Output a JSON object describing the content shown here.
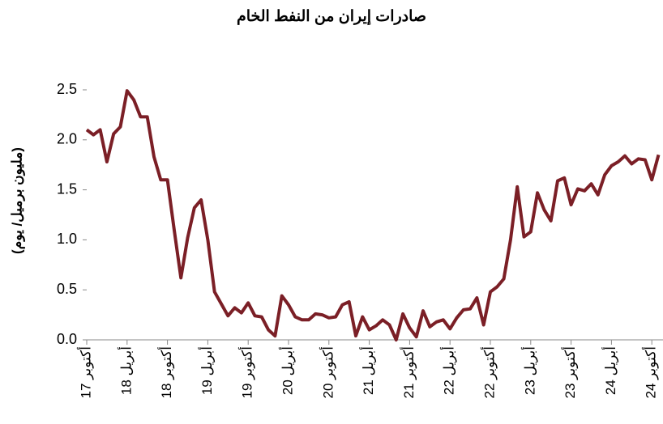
{
  "chart_data": {
    "type": "line",
    "title": "صادرات إيران من النفط الخام",
    "y_label": "(مليون برميل/ يوم)",
    "categories": [
      "أكتوبر 17",
      null,
      null,
      null,
      null,
      null,
      "أبريل 18",
      null,
      null,
      null,
      null,
      null,
      "أكتوبر 18",
      null,
      null,
      null,
      null,
      null,
      "أبريل 19",
      null,
      null,
      null,
      null,
      null,
      "أكتوبر 19",
      null,
      null,
      null,
      null,
      null,
      "أبريل 20",
      null,
      null,
      null,
      null,
      null,
      "أكتوبر 20",
      null,
      null,
      null,
      null,
      null,
      "أبريل 21",
      null,
      null,
      null,
      null,
      null,
      "أكتوبر 21",
      null,
      null,
      null,
      null,
      null,
      "أبريل 22",
      null,
      null,
      null,
      null,
      null,
      "أكتوبر 22",
      null,
      null,
      null,
      null,
      null,
      "أبريل 23",
      null,
      null,
      null,
      null,
      null,
      "أكتوبر 23",
      null,
      null,
      null,
      null,
      null,
      "أبريل 24",
      null,
      null,
      null,
      null,
      null,
      "أكتوبر 24",
      null
    ],
    "series": [
      {
        "color": "#7b1f26",
        "values": [
          2.1,
          2.05,
          2.1,
          1.78,
          2.06,
          2.13,
          2.49,
          2.4,
          2.23,
          2.23,
          1.83,
          1.6,
          1.6,
          1.1,
          0.62,
          1.02,
          1.32,
          1.4,
          1.0,
          0.48,
          0.36,
          0.24,
          0.32,
          0.27,
          0.37,
          0.24,
          0.23,
          0.1,
          0.04,
          0.44,
          0.35,
          0.23,
          0.2,
          0.2,
          0.26,
          0.25,
          0.22,
          0.23,
          0.35,
          0.38,
          0.04,
          0.23,
          0.1,
          0.14,
          0.2,
          0.15,
          0.0,
          0.26,
          0.12,
          0.03,
          0.29,
          0.13,
          0.18,
          0.2,
          0.11,
          0.22,
          0.3,
          0.31,
          0.42,
          0.15,
          0.48,
          0.53,
          0.61,
          1.0,
          1.53,
          1.03,
          1.08,
          1.47,
          1.3,
          1.19,
          1.59,
          1.62,
          1.35,
          1.51,
          1.49,
          1.56,
          1.45,
          1.65,
          1.74,
          1.78,
          1.84,
          1.76,
          1.81,
          1.8,
          1.6,
          1.85
        ]
      }
    ],
    "ylim": [
      0,
      2.5
    ],
    "yticks": [
      {
        "value": 0,
        "label": "0.0"
      },
      0.5,
      {
        "value": 1,
        "label": "1.0"
      },
      1.5,
      {
        "value": 2,
        "label": "2.0"
      },
      2.5
    ],
    "grid": false
  }
}
